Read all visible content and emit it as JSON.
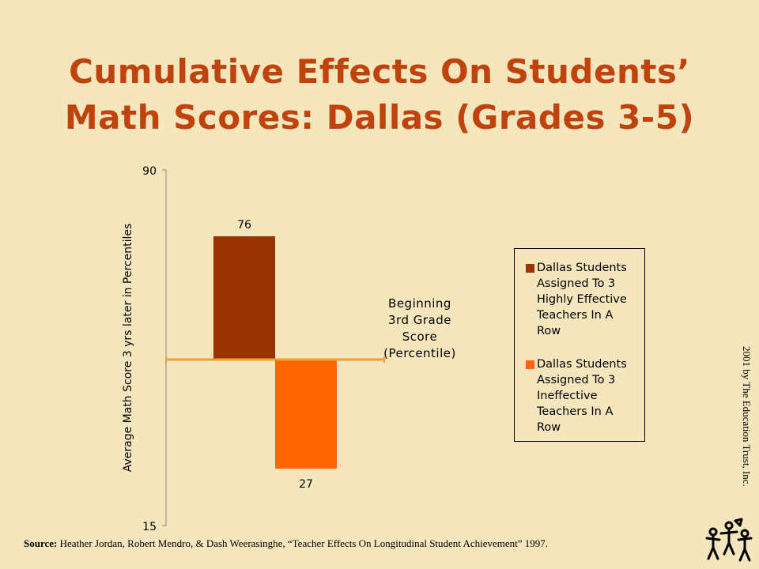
{
  "slide": {
    "title_line1": "Cumulative Effects On Students’",
    "title_line2": "Math Scores: Dallas (Grades 3-5)",
    "source_label": "Source:",
    "source_text": "Heather Jordan, Robert Mendro, & Dash Weerasinghe, “Teacher Effects On Longitudinal Student Achievement” 1997.",
    "side_note": "2001 by The Education Trust, Inc."
  },
  "chart_data": {
    "type": "bar",
    "ylabel": "Average Math Score 3 yrs later in Percentiles",
    "ylim": [
      15,
      90
    ],
    "baseline": 50,
    "baseline_label": [
      "Beginning",
      "3rd Grade",
      "Score",
      "(Percentile)"
    ],
    "series": [
      {
        "name": "Dallas Students Assigned To 3 Highly Effective Teachers In A Row",
        "values": [
          76
        ]
      },
      {
        "name": "Dallas Students Assigned To 3 Ineffective Teachers In A Row",
        "values": [
          27
        ]
      }
    ],
    "value_labels": [
      "76",
      "27"
    ],
    "colors": [
      "#993300",
      "#ff6600"
    ],
    "baseline_color": "#f0a030",
    "legend": {
      "position": "right",
      "items": [
        {
          "lines": [
            "Dallas Students",
            "Assigned To 3",
            "Highly Effective",
            "Teachers In A",
            "Row"
          ]
        },
        {
          "lines": [
            "Dallas Students",
            "Assigned To 3",
            "Ineffective",
            "Teachers In A",
            "Row"
          ]
        }
      ]
    }
  }
}
